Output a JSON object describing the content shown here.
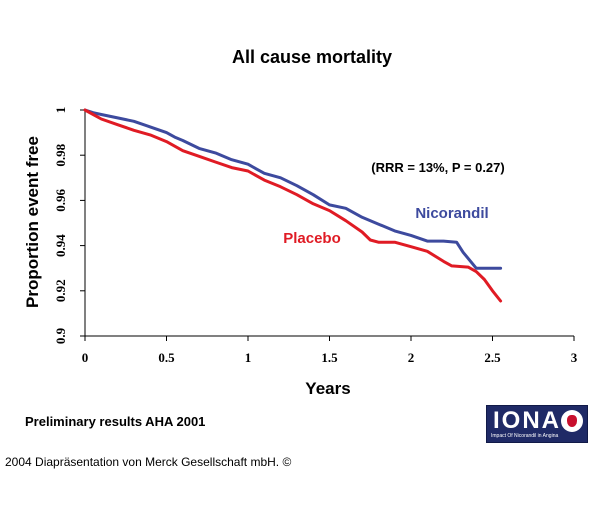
{
  "chart_data": {
    "type": "line",
    "title": "All cause mortality",
    "xlabel": "Years",
    "ylabel": "Proportion event free",
    "xlim": [
      0,
      3
    ],
    "ylim": [
      0.9,
      1
    ],
    "x_ticks": [
      "0",
      "0.5",
      "1",
      "1.5",
      "2",
      "2.5",
      "3"
    ],
    "y_ticks": [
      "0.9",
      "0.92",
      "0.94",
      "0.96",
      "0.98",
      "1"
    ],
    "annotation": "(RRR = 13%, P = 0.27)",
    "series": [
      {
        "name": "Nicorandil",
        "color": "#3d4a9e",
        "points": [
          [
            0,
            1.0
          ],
          [
            0.05,
            0.9988
          ],
          [
            0.1,
            0.998
          ],
          [
            0.2,
            0.9965
          ],
          [
            0.3,
            0.995
          ],
          [
            0.4,
            0.9925
          ],
          [
            0.5,
            0.99
          ],
          [
            0.55,
            0.988
          ],
          [
            0.6,
            0.9865
          ],
          [
            0.7,
            0.983
          ],
          [
            0.8,
            0.981
          ],
          [
            0.9,
            0.978
          ],
          [
            1.0,
            0.976
          ],
          [
            1.05,
            0.974
          ],
          [
            1.1,
            0.972
          ],
          [
            1.2,
            0.97
          ],
          [
            1.3,
            0.9665
          ],
          [
            1.4,
            0.9625
          ],
          [
            1.5,
            0.958
          ],
          [
            1.6,
            0.9565
          ],
          [
            1.7,
            0.9525
          ],
          [
            1.8,
            0.9495
          ],
          [
            1.9,
            0.9465
          ],
          [
            2.0,
            0.9445
          ],
          [
            2.1,
            0.942
          ],
          [
            2.2,
            0.942
          ],
          [
            2.28,
            0.9415
          ],
          [
            2.32,
            0.937
          ],
          [
            2.4,
            0.93
          ],
          [
            2.55,
            0.93
          ]
        ]
      },
      {
        "name": "Placebo",
        "color": "#e01b24",
        "points": [
          [
            0,
            1.0
          ],
          [
            0.05,
            0.998
          ],
          [
            0.1,
            0.996
          ],
          [
            0.2,
            0.9935
          ],
          [
            0.3,
            0.991
          ],
          [
            0.4,
            0.989
          ],
          [
            0.5,
            0.986
          ],
          [
            0.6,
            0.982
          ],
          [
            0.7,
            0.9795
          ],
          [
            0.8,
            0.977
          ],
          [
            0.9,
            0.9745
          ],
          [
            1.0,
            0.973
          ],
          [
            1.1,
            0.969
          ],
          [
            1.2,
            0.966
          ],
          [
            1.3,
            0.9625
          ],
          [
            1.4,
            0.9585
          ],
          [
            1.5,
            0.9555
          ],
          [
            1.6,
            0.951
          ],
          [
            1.7,
            0.946
          ],
          [
            1.75,
            0.9425
          ],
          [
            1.8,
            0.9415
          ],
          [
            1.9,
            0.9415
          ],
          [
            2.0,
            0.9395
          ],
          [
            2.1,
            0.9375
          ],
          [
            2.2,
            0.933
          ],
          [
            2.25,
            0.931
          ],
          [
            2.35,
            0.9305
          ],
          [
            2.4,
            0.9285
          ],
          [
            2.45,
            0.925
          ],
          [
            2.5,
            0.92
          ],
          [
            2.55,
            0.9155
          ]
        ]
      }
    ],
    "grid": false,
    "legend": "inline labels"
  },
  "footnote": "Preliminary results AHA 2001",
  "footnote_color": "#e01b24",
  "caption": "2004 Diapräsentation von Merck Gesellschaft mbH. ©",
  "logo": {
    "text": "IONA",
    "subtext": "Impact Of Nicorandil in Angina"
  }
}
